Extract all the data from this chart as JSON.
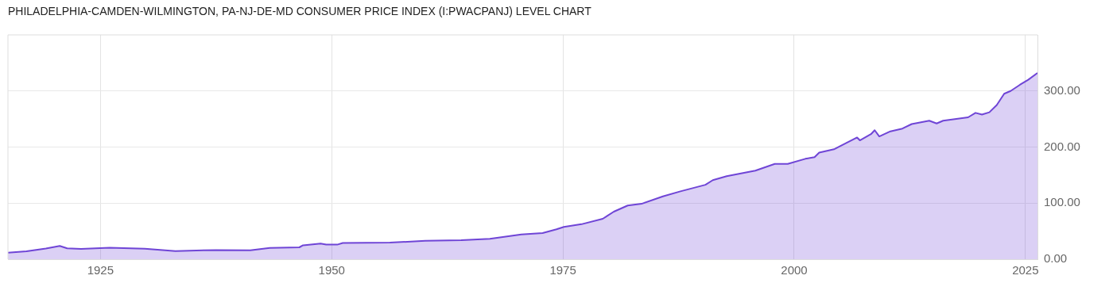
{
  "chart_data": {
    "type": "area",
    "title": "PHILADELPHIA-CAMDEN-WILMINGTON, PA-NJ-DE-MD CONSUMER PRICE INDEX (I:PWACPANJ) LEVEL CHART",
    "x": [
      1915.0,
      1917,
      1919.1,
      1920.6,
      1921.4,
      1922.9,
      1926,
      1929.8,
      1933.1,
      1937.5,
      1941.2,
      1943.3,
      1946.5,
      1946.9,
      1948.8,
      1949.4,
      1950.6,
      1951.2,
      1956.3,
      1960.1,
      1964.0,
      1967.1,
      1970.5,
      1972.8,
      1974.3,
      1975.1,
      1977,
      1979.3,
      1980.5,
      1982,
      1983.5,
      1985.8,
      1987.7,
      1990.4,
      1991.2,
      1992.7,
      1995.8,
      1997.9,
      1999.3,
      2001.2,
      2002.2,
      2002.7,
      2004.3,
      2005,
      2006.8,
      2007.1,
      2008.3,
      2008.7,
      2009.2,
      2010.4,
      2011.7,
      2012.7,
      2014.6,
      2015.4,
      2016.1,
      2018.8,
      2019.6,
      2020.3,
      2021.1,
      2021.9,
      2022.7,
      2023.4,
      2024.4,
      2025.3,
      2026.3
    ],
    "series": [
      {
        "color": "#6f45d6",
        "values": [
          11.5,
          14,
          19,
          23.6,
          19.4,
          18.2,
          20.6,
          18.8,
          14.5,
          16.4,
          15.8,
          20,
          21.2,
          24.8,
          27.9,
          26,
          26,
          29,
          29.7,
          32.7,
          34,
          36.4,
          44.2,
          46.7,
          53.3,
          57.6,
          62.4,
          72.1,
          84.8,
          95.8,
          98.8,
          112,
          121,
          132.7,
          141,
          148,
          158,
          170,
          170,
          179,
          182,
          190,
          196,
          202,
          217,
          212,
          223,
          230,
          219,
          228,
          233,
          241,
          247,
          242,
          247,
          253,
          261,
          258,
          262,
          275,
          295,
          300,
          311,
          320,
          332
        ]
      }
    ],
    "xlim": [
      1915,
      2026.3
    ],
    "xticks": [
      1925,
      1950,
      1975,
      2000,
      2025
    ],
    "ylim": [
      0,
      400
    ],
    "yticks": [
      {
        "value": 0,
        "label": "0.00"
      },
      {
        "value": 100,
        "label": "100.00"
      },
      {
        "value": 200,
        "label": "200.00"
      },
      {
        "value": 300,
        "label": "300.00"
      }
    ],
    "grid": true,
    "marker": "none"
  }
}
